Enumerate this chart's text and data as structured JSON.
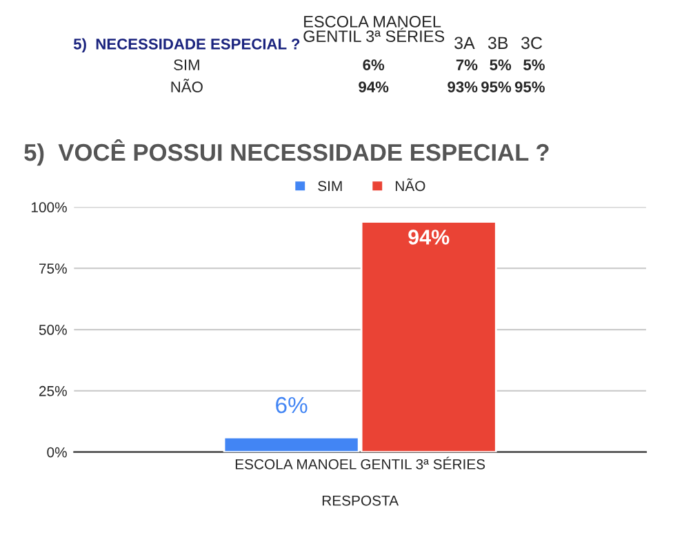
{
  "chart_data": {
    "type": "bar",
    "title": "5)  VOCÊ POSSUI NECESSIDADE ESPECIAL ?",
    "xlabel": "RESPOSTA",
    "categories": [
      "ESCOLA MANOEL GENTIL 3ª SÉRIES"
    ],
    "series": [
      {
        "name": "SIM",
        "color": "#4285f4",
        "values": [
          6
        ],
        "value_labels": [
          "6%"
        ]
      },
      {
        "name": "NÃO",
        "color": "#ea4335",
        "values": [
          94
        ],
        "value_labels": [
          "94%"
        ]
      }
    ],
    "ylim": [
      0,
      100
    ],
    "yticks": [
      {
        "value": 0,
        "label": "0%"
      },
      {
        "value": 25,
        "label": "25%"
      },
      {
        "value": 50,
        "label": "50%"
      },
      {
        "value": 75,
        "label": "75%"
      },
      {
        "value": 100,
        "label": "100%"
      }
    ],
    "grid": "y",
    "legend": "top",
    "annotations": [
      "5)  NECESSIDADE ESPECIAL ?",
      "ESCOLA MANOEL\nGENTIL 3ª SÉRIES",
      "3A",
      "3B",
      "3C",
      "SIM",
      "6%",
      "7%",
      "5%",
      "5%",
      "NÃO",
      "94%",
      "93%",
      "95%",
      "95%"
    ]
  }
}
